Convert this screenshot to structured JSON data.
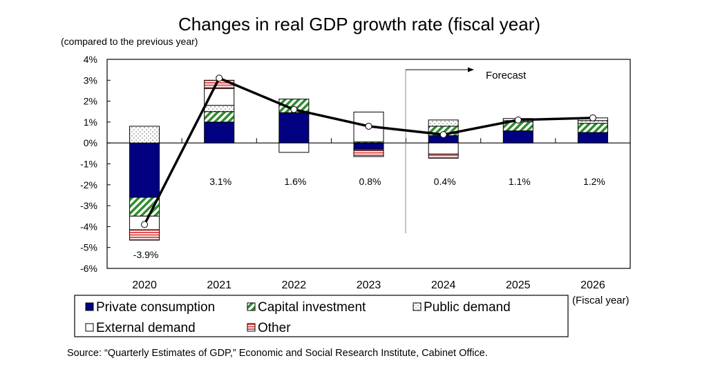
{
  "chart_data": {
    "type": "bar",
    "stacked": true,
    "title": "Changes in real GDP growth rate (fiscal year)",
    "subtitle": "(compared to the previous year)",
    "xlabel": "(Fiscal year)",
    "ylabel": "",
    "ylim": [
      -6,
      4
    ],
    "yticks": [
      "4%",
      "3%",
      "2%",
      "1%",
      "0%",
      "-1%",
      "-2%",
      "-3%",
      "-4%",
      "-5%",
      "-6%"
    ],
    "categories": [
      "2020",
      "2021",
      "2022",
      "2023",
      "2024",
      "2025",
      "2026"
    ],
    "series": [
      {
        "name": "Private consumption",
        "color": "#000080",
        "values": [
          -2.6,
          1.0,
          1.45,
          -0.3,
          0.35,
          0.58,
          0.5
        ]
      },
      {
        "name": "Capital investment",
        "color": "#2e8b2e",
        "values": [
          -0.9,
          0.5,
          0.65,
          0.05,
          0.45,
          0.43,
          0.44
        ]
      },
      {
        "name": "Public demand",
        "color": "#888888",
        "values": [
          0.8,
          0.3,
          0.0,
          -0.05,
          0.3,
          0.06,
          0.13
        ]
      },
      {
        "name": "External demand",
        "color": "#ffffff",
        "values": [
          -0.65,
          0.8,
          -0.45,
          1.43,
          -0.53,
          0.1,
          0.13
        ]
      },
      {
        "name": "Other",
        "color": "#e05050",
        "values": [
          -0.5,
          0.4,
          0.0,
          -0.3,
          -0.2,
          0.0,
          0.0
        ]
      }
    ],
    "total": {
      "values": [
        -3.9,
        3.1,
        1.6,
        0.8,
        0.4,
        1.1,
        1.2
      ],
      "labels": [
        "-3.9%",
        "3.1%",
        "1.6%",
        "0.8%",
        "0.4%",
        "1.1%",
        "1.2%"
      ]
    },
    "annotation": "Forecast",
    "forecast_from": "2024",
    "grid": false,
    "legend_position": "bottom"
  },
  "source": "Source: “Quarterly Estimates of GDP,” Economic and Social Research Institute, Cabinet Office."
}
